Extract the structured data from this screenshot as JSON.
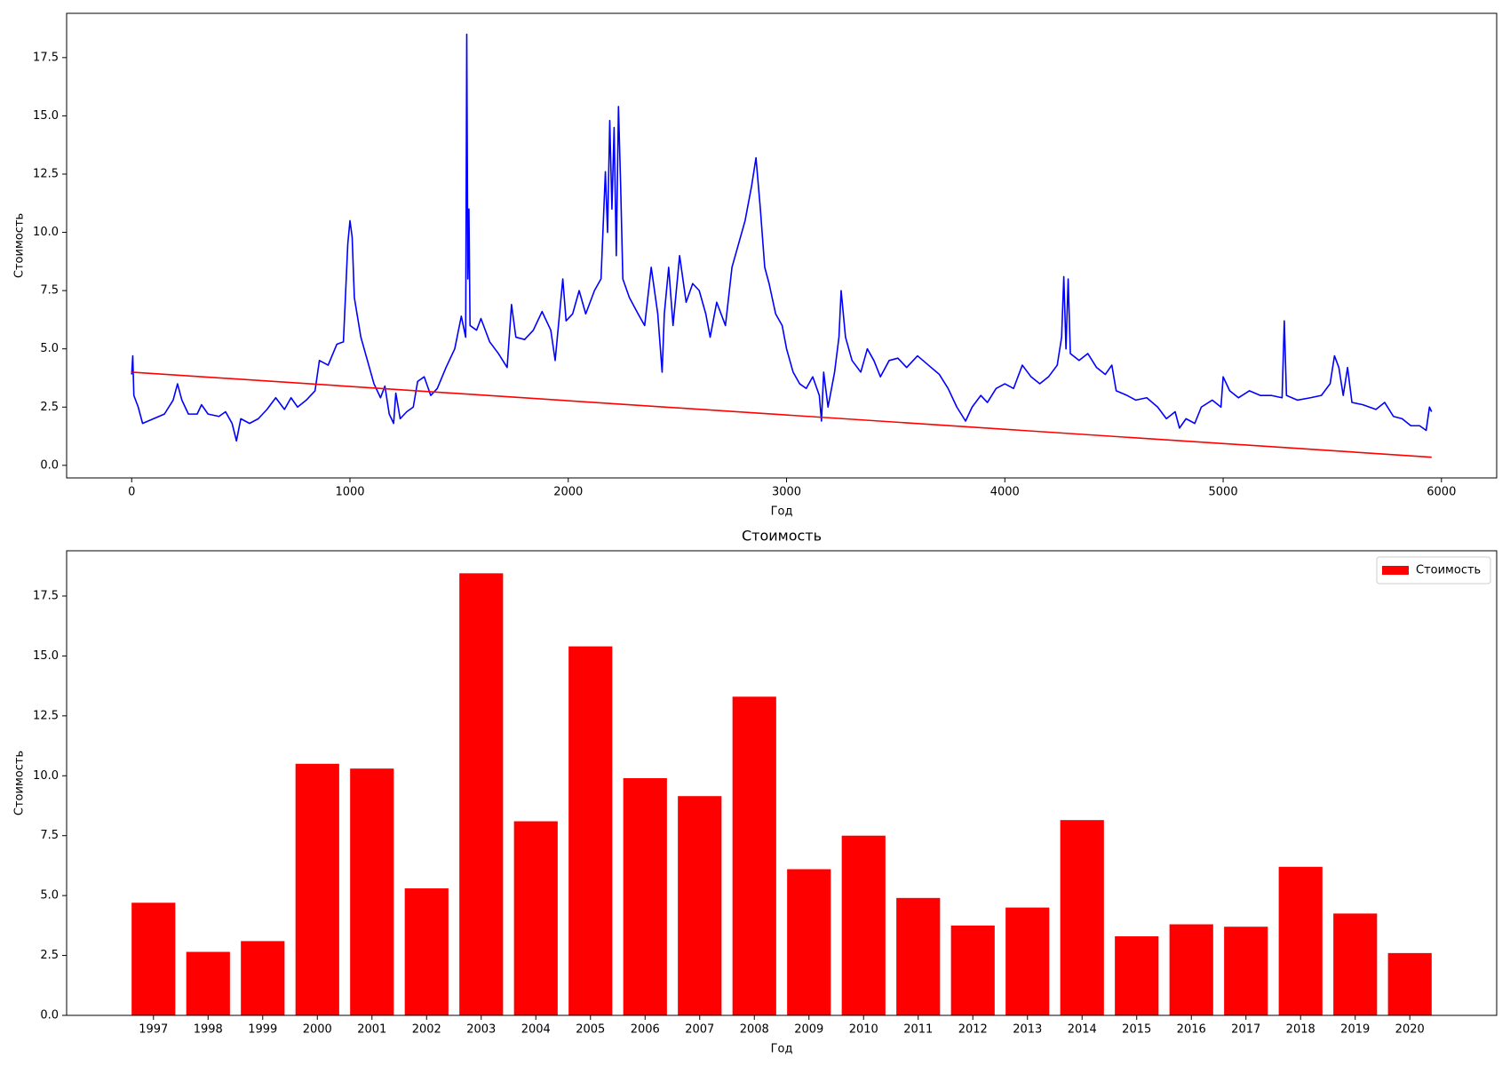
{
  "chart_data": [
    {
      "type": "line",
      "xlabel": "Год",
      "ylabel": "Стоимость",
      "xlim": [
        -298,
        6253
      ],
      "ylim": [
        -0.54,
        19.4
      ],
      "xticks": [
        0,
        1000,
        2000,
        3000,
        4000,
        5000,
        6000
      ],
      "yticks": [
        {
          "value": 0,
          "label": "0.0"
        },
        2.5,
        {
          "value": 5,
          "label": "5.0"
        },
        7.5,
        {
          "value": 10,
          "label": "10.0"
        },
        12.5,
        {
          "value": 15,
          "label": "15.0"
        },
        17.5
      ],
      "series": [
        {
          "color": "#0000ff",
          "x": [
            0,
            5,
            10,
            30,
            50,
            100,
            150,
            190,
            210,
            230,
            260,
            300,
            320,
            350,
            400,
            430,
            460,
            480,
            500,
            540,
            580,
            620,
            660,
            700,
            730,
            760,
            800,
            840,
            860,
            900,
            940,
            970,
            990,
            1000,
            1010,
            1020,
            1050,
            1080,
            1110,
            1140,
            1160,
            1180,
            1200,
            1210,
            1230,
            1260,
            1290,
            1310,
            1340,
            1370,
            1400,
            1440,
            1480,
            1510,
            1530,
            1535,
            1540,
            1545,
            1550,
            1580,
            1600,
            1640,
            1680,
            1720,
            1740,
            1760,
            1800,
            1840,
            1880,
            1920,
            1940,
            1960,
            1975,
            1990,
            2020,
            2050,
            2080,
            2120,
            2150,
            2170,
            2180,
            2190,
            2200,
            2210,
            2220,
            2230,
            2240,
            2250,
            2280,
            2320,
            2350,
            2380,
            2410,
            2430,
            2440,
            2460,
            2480,
            2510,
            2540,
            2570,
            2600,
            2630,
            2650,
            2680,
            2720,
            2750,
            2780,
            2810,
            2840,
            2860,
            2880,
            2900,
            2920,
            2950,
            2980,
            3000,
            3030,
            3060,
            3090,
            3120,
            3150,
            3160,
            3170,
            3190,
            3220,
            3240,
            3250,
            3270,
            3300,
            3340,
            3370,
            3400,
            3430,
            3470,
            3510,
            3550,
            3600,
            3650,
            3700,
            3740,
            3780,
            3820,
            3850,
            3890,
            3920,
            3960,
            4000,
            4040,
            4080,
            4120,
            4160,
            4200,
            4240,
            4260,
            4270,
            4280,
            4290,
            4300,
            4340,
            4380,
            4420,
            4460,
            4490,
            4510,
            4560,
            4600,
            4650,
            4700,
            4740,
            4780,
            4800,
            4830,
            4870,
            4900,
            4950,
            4990,
            5000,
            5030,
            5070,
            5120,
            5170,
            5220,
            5270,
            5280,
            5290,
            5340,
            5400,
            5450,
            5490,
            5510,
            5530,
            5550,
            5570,
            5590,
            5640,
            5700,
            5740,
            5780,
            5820,
            5860,
            5900,
            5930,
            5945,
            5955
          ],
          "values": [
            3.9,
            4.7,
            3.0,
            2.5,
            1.8,
            2.0,
            2.2,
            2.8,
            3.5,
            2.8,
            2.2,
            2.2,
            2.6,
            2.2,
            2.1,
            2.3,
            1.8,
            1.05,
            2.0,
            1.8,
            2.0,
            2.4,
            2.9,
            2.4,
            2.9,
            2.5,
            2.8,
            3.2,
            4.5,
            4.3,
            5.2,
            5.3,
            9.5,
            10.5,
            9.8,
            7.2,
            5.5,
            4.5,
            3.5,
            2.9,
            3.4,
            2.2,
            1.8,
            3.1,
            2.0,
            2.3,
            2.5,
            3.6,
            3.8,
            3.0,
            3.3,
            4.2,
            5.0,
            6.4,
            5.5,
            18.5,
            8.0,
            11.0,
            6.0,
            5.8,
            6.3,
            5.3,
            4.8,
            4.2,
            6.9,
            5.5,
            5.4,
            5.8,
            6.6,
            5.8,
            4.5,
            6.5,
            8.0,
            6.2,
            6.5,
            7.5,
            6.5,
            7.5,
            8.0,
            12.6,
            10.0,
            14.8,
            11.0,
            14.5,
            9.0,
            15.4,
            12.0,
            8.0,
            7.2,
            6.5,
            6.0,
            8.5,
            6.5,
            4.0,
            6.5,
            8.5,
            6.0,
            9.0,
            7.0,
            7.8,
            7.5,
            6.5,
            5.5,
            7.0,
            6.0,
            8.5,
            9.5,
            10.5,
            12.0,
            13.2,
            11.0,
            8.5,
            7.8,
            6.5,
            6.0,
            5.0,
            4.0,
            3.5,
            3.3,
            3.8,
            3.0,
            1.9,
            4.0,
            2.5,
            4.0,
            5.5,
            7.5,
            5.5,
            4.5,
            4.0,
            5.0,
            4.5,
            3.8,
            4.5,
            4.6,
            4.2,
            4.7,
            4.3,
            3.9,
            3.3,
            2.5,
            1.9,
            2.5,
            3.0,
            2.7,
            3.3,
            3.5,
            3.3,
            4.3,
            3.8,
            3.5,
            3.8,
            4.3,
            5.5,
            8.1,
            5.0,
            8.0,
            4.8,
            4.5,
            4.8,
            4.2,
            3.9,
            4.3,
            3.2,
            3.0,
            2.8,
            2.9,
            2.5,
            2.0,
            2.3,
            1.6,
            2.0,
            1.8,
            2.5,
            2.8,
            2.5,
            3.8,
            3.2,
            2.9,
            3.2,
            3.0,
            3.0,
            2.9,
            6.2,
            3.0,
            2.8,
            2.9,
            3.0,
            3.5,
            4.7,
            4.2,
            3.0,
            4.2,
            2.7,
            2.6,
            2.4,
            2.7,
            2.1,
            2.0,
            1.7,
            1.7,
            1.5,
            2.5,
            2.3
          ]
        },
        {
          "color": "#ff0000",
          "x": [
            0,
            5955
          ],
          "values": [
            4.0,
            0.35
          ]
        }
      ]
    },
    {
      "type": "bar",
      "title": "Стоимость",
      "xlabel": "Год",
      "ylabel": "Стоимость",
      "categories": [
        "1997",
        "1998",
        "1999",
        "2000",
        "2001",
        "2002",
        "2003",
        "2004",
        "2005",
        "2006",
        "2007",
        "2008",
        "2009",
        "2010",
        "2011",
        "2012",
        "2013",
        "2014",
        "2015",
        "2016",
        "2017",
        "2018",
        "2019",
        "2020"
      ],
      "series": [
        {
          "name": "Стоимость",
          "color": "#ff0000",
          "values": [
            4.7,
            2.65,
            3.1,
            10.5,
            10.3,
            5.3,
            18.45,
            8.1,
            15.4,
            9.9,
            9.15,
            13.3,
            6.1,
            7.5,
            4.9,
            3.75,
            4.5,
            8.15,
            3.3,
            3.8,
            3.7,
            6.2,
            4.25,
            2.6
          ]
        }
      ],
      "ylim": [
        0,
        19.39
      ],
      "yticks": [
        {
          "value": 0,
          "label": "0.0"
        },
        2.5,
        {
          "value": 5,
          "label": "5.0"
        },
        7.5,
        {
          "value": 10,
          "label": "10.0"
        },
        12.5,
        {
          "value": 15,
          "label": "15.0"
        },
        17.5
      ],
      "legend": "upper right"
    }
  ]
}
